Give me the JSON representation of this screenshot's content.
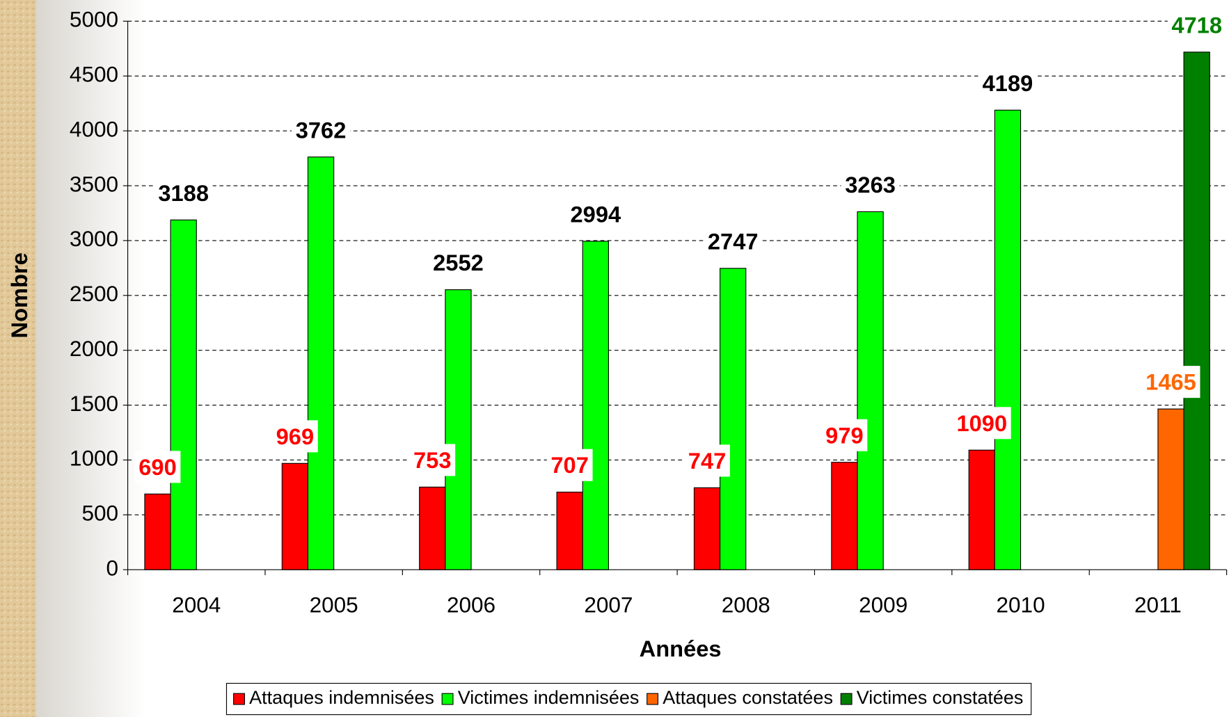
{
  "chart_data": {
    "type": "bar",
    "x_label": "Années",
    "y_label": "Nombre",
    "categories": [
      "2004",
      "2005",
      "2006",
      "2007",
      "2008",
      "2009",
      "2010",
      "2011"
    ],
    "series": [
      {
        "name": "Attaques indemnisées",
        "color": "#ff0000",
        "values": [
          690,
          969,
          753,
          707,
          747,
          979,
          1090,
          null
        ]
      },
      {
        "name": "Victimes indemnisées",
        "color": "#00ff00",
        "values": [
          3188,
          3762,
          2552,
          2994,
          2747,
          3263,
          4189,
          null
        ]
      },
      {
        "name": "Attaques constatées",
        "color": "#ff6600",
        "values": [
          null,
          null,
          null,
          null,
          null,
          null,
          null,
          1465
        ]
      },
      {
        "name": "Victimes constatées",
        "color": "#008000",
        "values": [
          null,
          null,
          null,
          null,
          null,
          null,
          null,
          4718
        ]
      }
    ],
    "label_colors": [
      "#ff0000",
      "#000000",
      "#ff6600",
      "#008000"
    ],
    "ylim": [
      0,
      5000
    ],
    "yticks": [
      0,
      500,
      1000,
      1500,
      2000,
      2500,
      3000,
      3500,
      4000,
      4500,
      5000
    ],
    "grid": true,
    "legend": "bottom"
  }
}
